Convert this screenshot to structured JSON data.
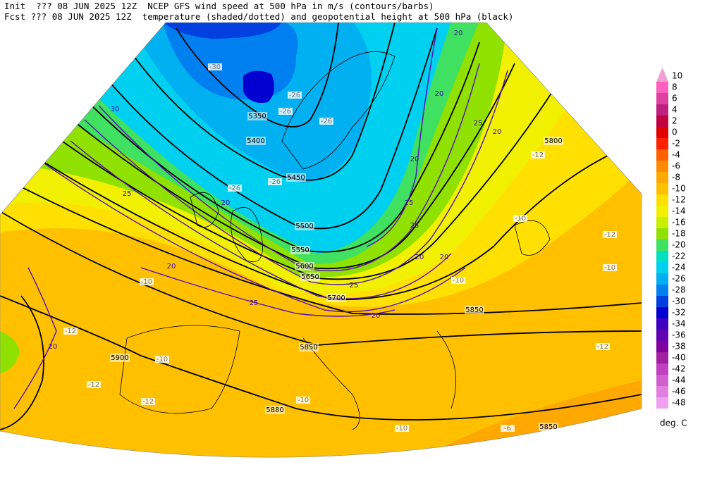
{
  "header": {
    "line1": "Init  ??? 08 JUN 2025 12Z  NCEP GFS wind speed at 500 hPa in m/s (contours/barbs)",
    "line2": "Fcst ??? 08 JUN 2025 12Z  temperature (shaded/dotted) and geopotential height at 500 hPa (black)"
  },
  "map": {
    "height_labels": [
      "5350",
      "5400",
      "5450",
      "5500",
      "5550",
      "5600",
      "5650",
      "5700",
      "5800",
      "5850",
      "5850",
      "5900",
      "5880",
      "5850"
    ],
    "wind_labels": [
      "20",
      "30",
      "25",
      "20",
      "20",
      "25",
      "20",
      "20",
      "25",
      "20",
      "25",
      "20",
      "20",
      "25",
      "25",
      "20",
      "20"
    ],
    "temp_labels": [
      "-30",
      "-26",
      "-26",
      "-26",
      "-26",
      "-26",
      "-10",
      "-12",
      "-12",
      "-10",
      "-12",
      "-10",
      "-10",
      "-6",
      "-12",
      "-12",
      "-10",
      "-12",
      "-10",
      "-10"
    ]
  },
  "colorbar": {
    "labels": [
      10,
      8,
      6,
      4,
      2,
      0,
      -2,
      -4,
      -6,
      -8,
      -10,
      -12,
      -14,
      -16,
      -18,
      -20,
      -22,
      -24,
      -26,
      -28,
      -30,
      -32,
      -34,
      -36,
      -38,
      -40,
      -42,
      -44,
      -46,
      -48
    ],
    "colors": [
      "#f0a0d0",
      "#ff60c0",
      "#e040a0",
      "#c02080",
      "#c00040",
      "#e00000",
      "#ff2000",
      "#ff6000",
      "#ff8c00",
      "#ffa800",
      "#ffc000",
      "#ffe000",
      "#f0f000",
      "#c8f000",
      "#90e000",
      "#40e060",
      "#00e0c0",
      "#00d0f0",
      "#00b0f0",
      "#0080f0",
      "#0040e0",
      "#0000d0",
      "#4000c0",
      "#6000b0",
      "#8000a0",
      "#a020a0",
      "#c040c0",
      "#d060d0",
      "#e080e0",
      "#f0a0f0"
    ],
    "unit": "deg. C"
  }
}
